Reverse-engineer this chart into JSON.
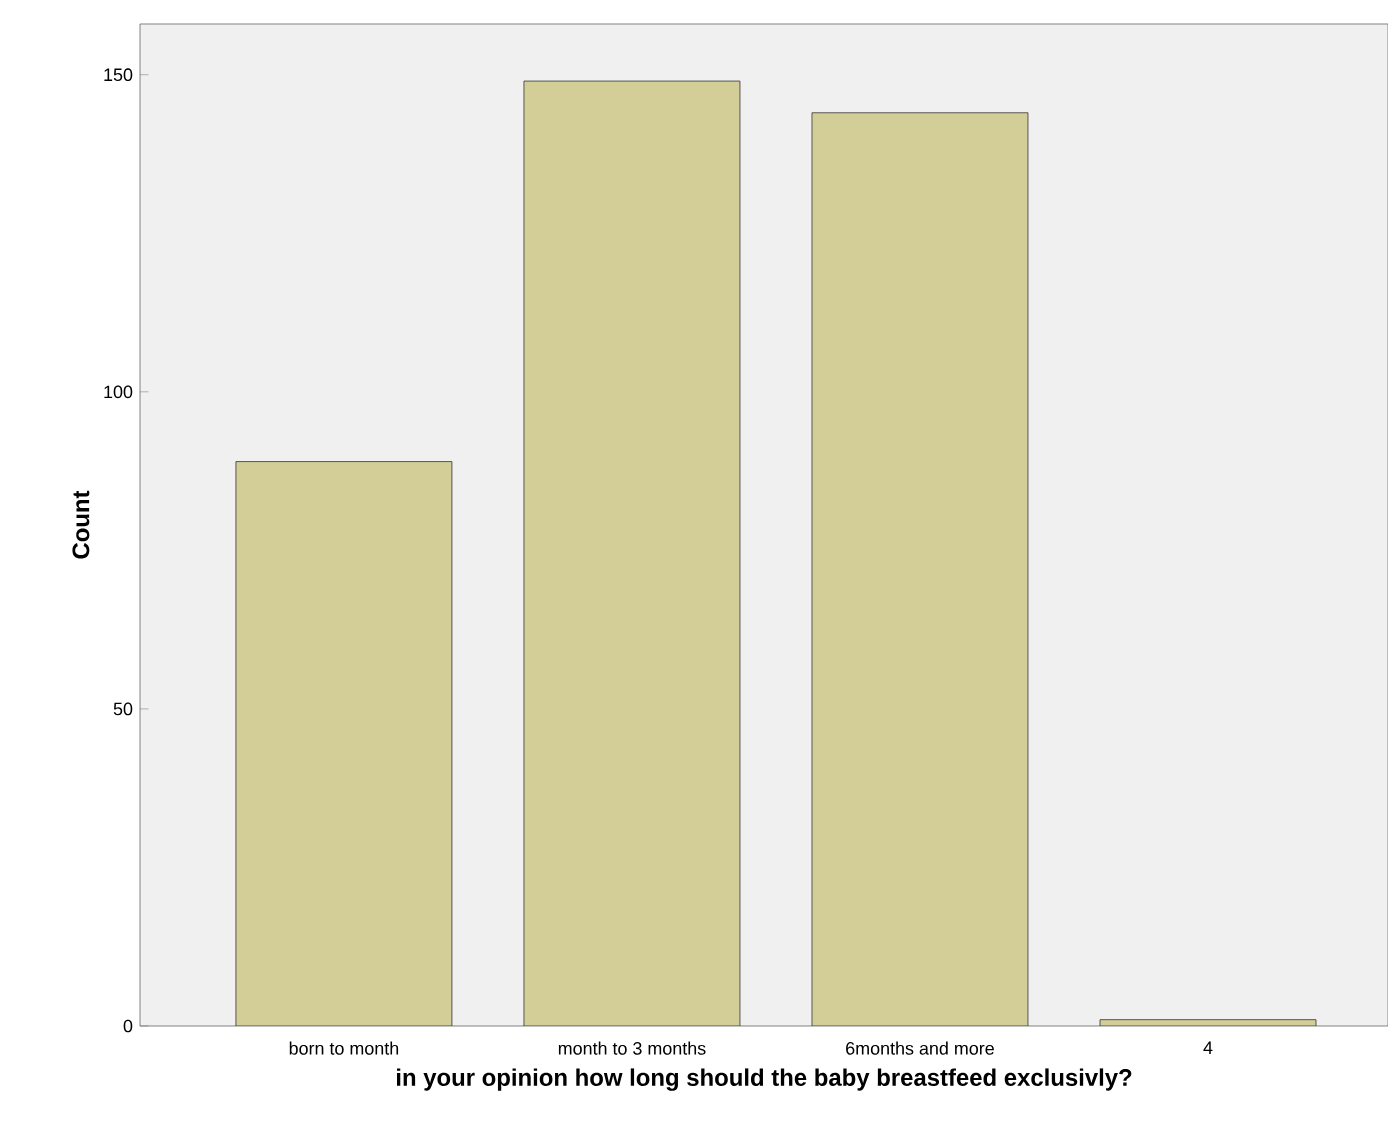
{
  "chart_data": {
    "type": "bar",
    "xlabel": "in your opinion how long should the baby breastfeed exclusivly?",
    "ylabel": "Count",
    "categories": [
      "born to month",
      "month to 3 months",
      "6months and more",
      "4"
    ],
    "values": [
      89,
      149,
      144,
      1
    ],
    "color": "#d3ce97",
    "ylim": [
      0,
      158
    ],
    "yticks": [
      0,
      50,
      100,
      150
    ],
    "grid": false
  }
}
